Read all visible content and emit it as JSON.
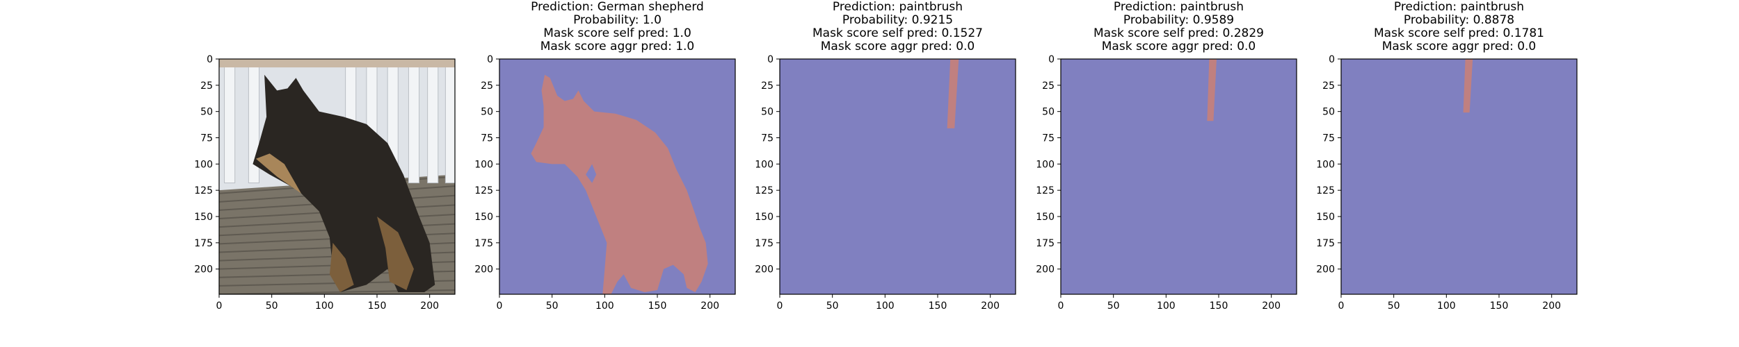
{
  "chart_data": [
    {
      "type": "image",
      "content": "photo",
      "title_lines": [],
      "xticks": [
        0,
        50,
        100,
        150,
        200
      ],
      "yticks": [
        0,
        25,
        50,
        75,
        100,
        125,
        150,
        175,
        200
      ],
      "xlim": [
        0,
        224
      ],
      "ylim": [
        0,
        224
      ]
    },
    {
      "type": "heatmap",
      "content": "mask",
      "mask_shape": "dog",
      "title_lines": [
        "Prediction: German shepherd",
        "Probability: 1.0",
        "Mask score self pred: 1.0",
        "Mask score aggr pred: 1.0"
      ],
      "xticks": [
        0,
        50,
        100,
        150,
        200
      ],
      "yticks": [
        0,
        25,
        50,
        75,
        100,
        125,
        150,
        175,
        200
      ],
      "xlim": [
        0,
        224
      ],
      "ylim": [
        0,
        224
      ]
    },
    {
      "type": "heatmap",
      "content": "mask",
      "mask_shape": "stripe",
      "stripe": {
        "x_top": [
          162,
          170
        ],
        "x_bottom": [
          159,
          166
        ],
        "y_end": 66
      },
      "title_lines": [
        "Prediction: paintbrush",
        "Probability: 0.9215",
        "Mask score self pred: 0.1527",
        "Mask score aggr pred: 0.0"
      ],
      "xticks": [
        0,
        50,
        100,
        150,
        200
      ],
      "yticks": [
        0,
        25,
        50,
        75,
        100,
        125,
        150,
        175,
        200
      ],
      "xlim": [
        0,
        224
      ],
      "ylim": [
        0,
        224
      ]
    },
    {
      "type": "heatmap",
      "content": "mask",
      "mask_shape": "stripe",
      "stripe": {
        "x_top": [
          141,
          148
        ],
        "x_bottom": [
          139,
          145
        ],
        "y_end": 59
      },
      "title_lines": [
        "Prediction: paintbrush",
        "Probability: 0.9589",
        "Mask score self pred: 0.2829",
        "Mask score aggr pred: 0.0"
      ],
      "xticks": [
        0,
        50,
        100,
        150,
        200
      ],
      "yticks": [
        0,
        25,
        50,
        75,
        100,
        125,
        150,
        175,
        200
      ],
      "xlim": [
        0,
        224
      ],
      "ylim": [
        0,
        224
      ]
    },
    {
      "type": "heatmap",
      "content": "mask",
      "mask_shape": "stripe",
      "stripe": {
        "x_top": [
          118,
          125
        ],
        "x_bottom": [
          116,
          122
        ],
        "y_end": 51
      },
      "title_lines": [
        "Prediction: paintbrush",
        "Probability: 0.8878",
        "Mask score self pred: 0.1781",
        "Mask score aggr pred: 0.0"
      ],
      "xticks": [
        0,
        50,
        100,
        150,
        200
      ],
      "yticks": [
        0,
        25,
        50,
        75,
        100,
        125,
        150,
        175,
        200
      ],
      "xlim": [
        0,
        224
      ],
      "ylim": [
        0,
        224
      ]
    }
  ],
  "colors": {
    "mask_background": "#8080c0",
    "mask_foreground": "#c08080",
    "axis": "#000000",
    "photo_floor": "#7a7468",
    "photo_wall": "#dfe3e8",
    "photo_railing": "#f2f4f6",
    "photo_dog_dark": "#2a2622",
    "photo_dog_tan": "#a8865a"
  }
}
